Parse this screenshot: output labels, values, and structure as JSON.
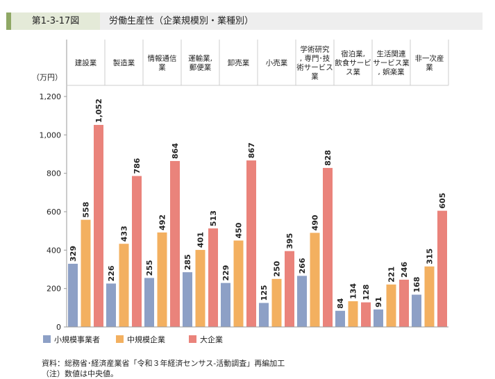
{
  "header": {
    "figure_number": "第1-3-17図",
    "title": "労働生産性（企業規模別・業種別）"
  },
  "chart_data": {
    "type": "bar",
    "title": "労働生産性（企業規模別・業種別）",
    "ylabel": "（万円）",
    "ylim": [
      0,
      1200
    ],
    "yticks": [
      0,
      200,
      400,
      600,
      800,
      1000,
      1200
    ],
    "ytick_labels": [
      "0",
      "200",
      "400",
      "600",
      "800",
      "1,000",
      "1,200"
    ],
    "categories": [
      [
        "建設業"
      ],
      [
        "製造業"
      ],
      [
        "情報通信",
        "業"
      ],
      [
        "運輸業,",
        "郵便業"
      ],
      [
        "卸売業"
      ],
      [
        "小売業"
      ],
      [
        "学術研究",
        ", 専門･技",
        "術サービス",
        "業"
      ],
      [
        "宿泊業,",
        "飲食サービ",
        "ス業"
      ],
      [
        "生活関連",
        "サービス業",
        ", 娯楽業"
      ],
      [
        "非一次産",
        "業"
      ]
    ],
    "series": [
      {
        "name": "小規模事業者",
        "color": "#8da0c6",
        "values": [
          329,
          226,
          255,
          285,
          229,
          125,
          266,
          84,
          91,
          168
        ]
      },
      {
        "name": "中規模企業",
        "color": "#f3b060",
        "values": [
          558,
          433,
          492,
          401,
          450,
          250,
          490,
          134,
          221,
          315
        ]
      },
      {
        "name": "大企業",
        "color": "#ea837b",
        "values": [
          1052,
          786,
          864,
          513,
          867,
          395,
          828,
          128,
          246,
          605
        ]
      }
    ],
    "legend": "bottom-left"
  },
  "notes": {
    "source": "資料：総務省･経済産業省「令和３年経済センサス‐活動調査」再編加工",
    "note": "（注）数値は中央値。"
  }
}
